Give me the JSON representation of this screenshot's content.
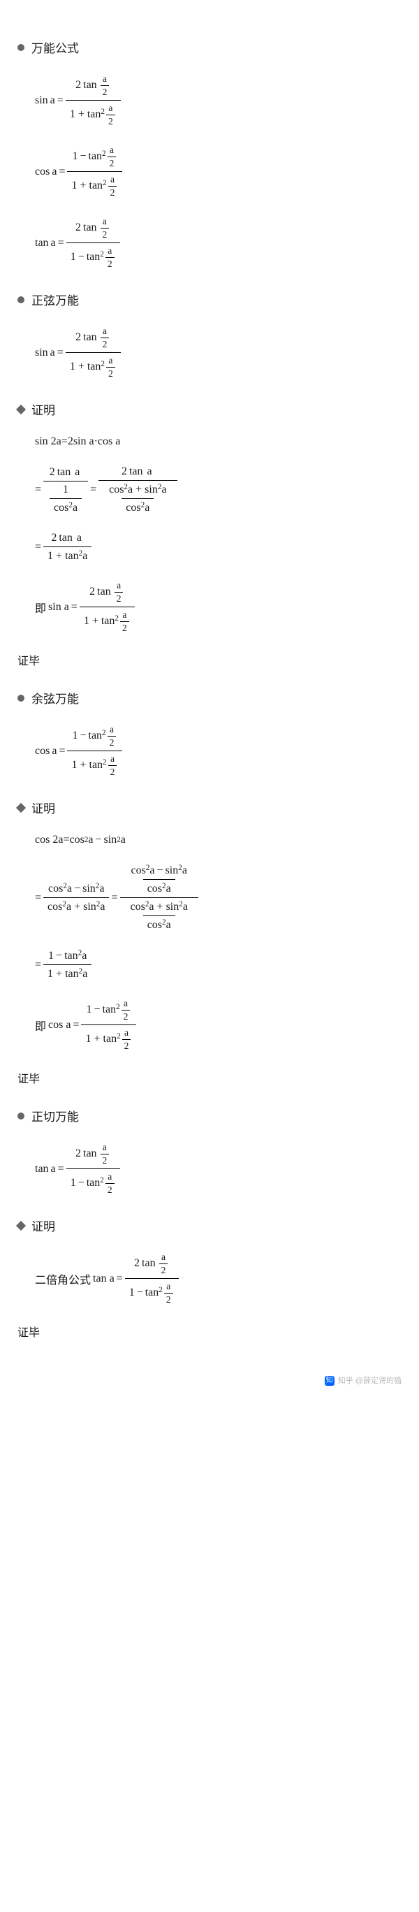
{
  "h1": "万能公式",
  "h2": "正弦万能",
  "h3": "余弦万能",
  "h4": "正切万能",
  "prf": "证明",
  "qed": "证毕",
  "sin": "sin",
  "cos": "cos",
  "tan": "tan",
  "a": "a",
  "a2": "2",
  "two": "2",
  "sq": "2",
  "eq": " = ",
  "plus": " + ",
  "minus": "−",
  "one": "1",
  "dot": " · ",
  "sin2a": "sin 2a",
  "cos2a": "cos 2a",
  "ji": "即",
  "sina": "sin a",
  "cosa": "cos a",
  "tana": "tan a",
  "dbl": "二倍角公式",
  "wm": "@薛定谔的猫"
}
